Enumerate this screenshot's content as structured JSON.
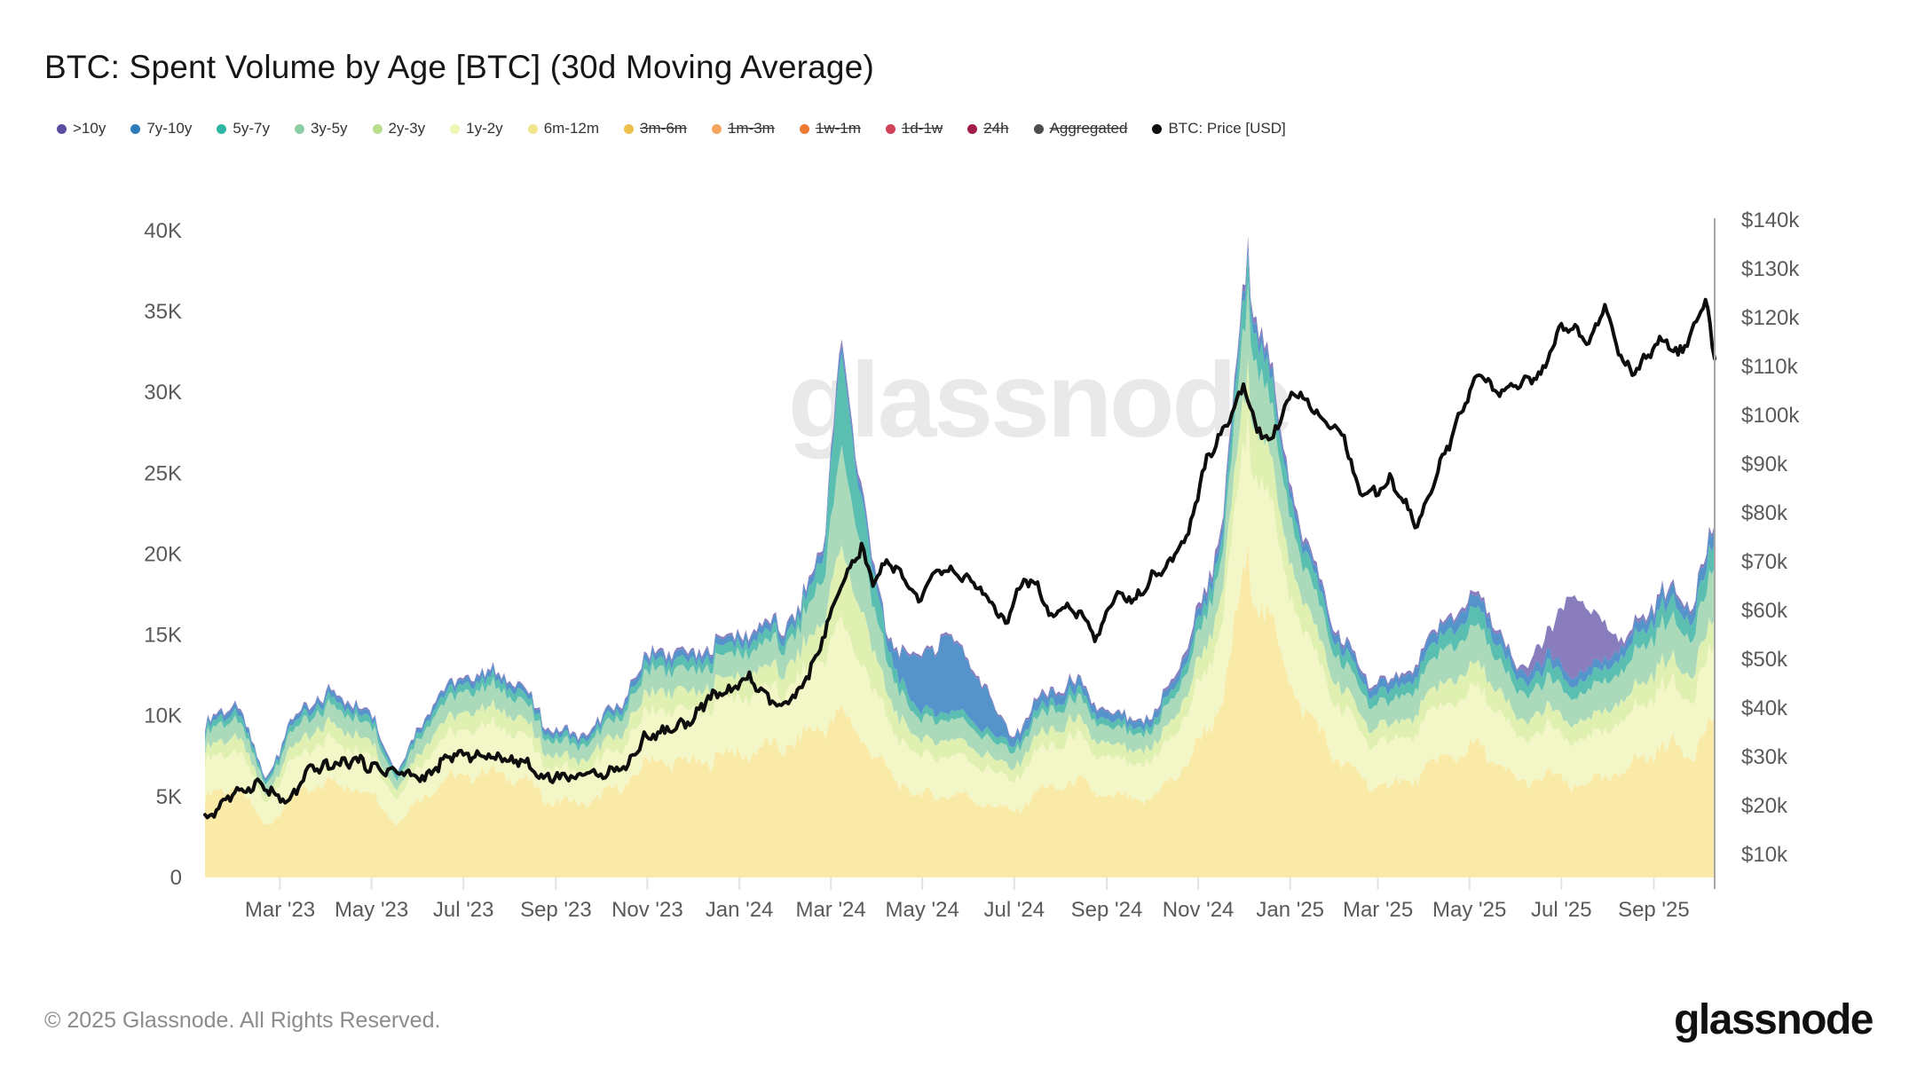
{
  "title": "BTC: Spent Volume by Age [BTC] (30d Moving Average)",
  "watermark": "glassnode",
  "footer": {
    "copyright": "© 2025 Glassnode. All Rights Reserved.",
    "logo": "glassnode"
  },
  "legend": {
    "items": [
      {
        "label": ">10y",
        "color": "#5B4EA0",
        "disabled": false
      },
      {
        "label": "7y-10y",
        "color": "#2D7DBB",
        "disabled": false
      },
      {
        "label": "5y-7y",
        "color": "#2EB7A4",
        "disabled": false
      },
      {
        "label": "3y-5y",
        "color": "#8CCFA7",
        "disabled": false
      },
      {
        "label": "2y-3y",
        "color": "#B9DC8E",
        "disabled": false
      },
      {
        "label": "1y-2y",
        "color": "#EFF7B3",
        "disabled": false
      },
      {
        "label": "6m-12m",
        "color": "#F1E58B",
        "disabled": false
      },
      {
        "label": "3m-6m",
        "color": "#ECC04A",
        "disabled": true
      },
      {
        "label": "1m-3m",
        "color": "#F5A55E",
        "disabled": true
      },
      {
        "label": "1w-1m",
        "color": "#EE7A31",
        "disabled": true
      },
      {
        "label": "1d-1w",
        "color": "#D04258",
        "disabled": true
      },
      {
        "label": "24h",
        "color": "#A21D47",
        "disabled": true
      },
      {
        "label": "Aggregated",
        "color": "#4D4D4D",
        "disabled": true
      },
      {
        "label": "BTC: Price [USD]",
        "color": "#0D0D0D",
        "disabled": false
      }
    ]
  },
  "chart_data": {
    "type": "area",
    "subtype": "stacked-area-with-price-line",
    "title": "BTC: Spent Volume by Age [BTC] (30d Moving Average)",
    "grid": false,
    "watermark_color": "#e9e9e9",
    "left_axis": {
      "labels": [
        "0",
        "5K",
        "10K",
        "15K",
        "20K",
        "25K",
        "30K",
        "35K",
        "40K"
      ],
      "values": [
        0,
        5,
        10,
        15,
        20,
        25,
        30,
        35,
        40
      ],
      "unit": "K BTC",
      "ylim": [
        0,
        44
      ]
    },
    "right_axis": {
      "labels": [
        "$10k",
        "$20k",
        "$30k",
        "$40k",
        "$50k",
        "$60k",
        "$70k",
        "$80k",
        "$90k",
        "$100k",
        "$110k",
        "$120k",
        "$130k",
        "$140k"
      ],
      "values": [
        10,
        20,
        30,
        40,
        50,
        60,
        70,
        80,
        90,
        100,
        110,
        120,
        130,
        140
      ],
      "unit": "USD",
      "ylim": [
        10,
        140
      ]
    },
    "x_axis": {
      "t_domain": [
        0,
        33
      ],
      "t_unit": "months since 2023-01-10",
      "ticks": [
        {
          "label": "Mar '23",
          "t": 1.64
        },
        {
          "label": "May '23",
          "t": 3.64
        },
        {
          "label": "Jul '23",
          "t": 5.65
        },
        {
          "label": "Sep '23",
          "t": 7.67
        },
        {
          "label": "Nov '23",
          "t": 9.67
        },
        {
          "label": "Jan '24",
          "t": 11.68
        },
        {
          "label": "Mar '24",
          "t": 13.68
        },
        {
          "label": "May '24",
          "t": 15.68
        },
        {
          "label": "Jul '24",
          "t": 17.69
        },
        {
          "label": "Sep '24",
          "t": 19.71
        },
        {
          "label": "Nov '24",
          "t": 21.71
        },
        {
          "label": "Jan '25",
          "t": 23.72
        },
        {
          "label": "Mar '25",
          "t": 25.64
        },
        {
          "label": "May '25",
          "t": 27.64
        },
        {
          "label": "Jul '25",
          "t": 29.65
        },
        {
          "label": "Sep '25",
          "t": 31.67
        }
      ]
    },
    "keypoint_t": [
      0,
      0.7,
      1.3,
      2.0,
      2.8,
      3.6,
      4.2,
      5.0,
      5.9,
      6.8,
      7.5,
      8.2,
      9.0,
      9.8,
      10.6,
      11.4,
      12.2,
      13.0,
      13.5,
      13.9,
      14.3,
      14.9,
      15.6,
      16.2,
      16.9,
      17.6,
      18.3,
      19.0,
      19.8,
      20.7,
      21.5,
      22.2,
      22.8,
      23.3,
      23.9,
      24.7,
      25.5,
      26.3,
      27.2,
      27.9,
      28.7,
      29.4,
      29.9,
      30.4,
      31.0,
      31.8,
      32.5,
      33.0
    ],
    "series": [
      {
        "name": "6m-12m",
        "fill": "#FAE9A4",
        "values": [
          5.0,
          5.6,
          3.2,
          5.2,
          5.9,
          5.3,
          3.4,
          5.7,
          6.5,
          6.3,
          4.8,
          4.5,
          5.4,
          7.3,
          7.0,
          7.6,
          7.9,
          8.4,
          9.5,
          10.0,
          9.0,
          6.5,
          5.0,
          5.2,
          4.8,
          4.0,
          5.4,
          5.9,
          4.9,
          4.8,
          7.2,
          10.5,
          19.5,
          15.5,
          11.0,
          7.5,
          5.6,
          5.9,
          7.6,
          8.0,
          5.8,
          6.3,
          5.7,
          5.9,
          6.6,
          8.1,
          7.9,
          9.6
        ]
      },
      {
        "name": "1y-2y",
        "fill": "#F3F6C4",
        "values": [
          2.1,
          2.4,
          1.4,
          2.3,
          2.6,
          2.3,
          1.5,
          2.5,
          2.9,
          2.8,
          2.1,
          2.0,
          2.4,
          3.2,
          3.1,
          3.4,
          3.5,
          3.7,
          4.3,
          5.5,
          4.8,
          3.2,
          2.4,
          2.5,
          2.3,
          1.9,
          2.5,
          2.7,
          2.25,
          2.2,
          3.1,
          4.5,
          8.5,
          7.0,
          5.0,
          3.4,
          2.6,
          2.7,
          3.4,
          3.6,
          2.7,
          2.9,
          2.7,
          2.8,
          3.0,
          3.7,
          3.6,
          4.4
        ]
      },
      {
        "name": "2y-3y",
        "fill": "#DFF0AE",
        "values": [
          0.8,
          0.9,
          0.5,
          0.9,
          1.0,
          0.9,
          0.55,
          1.0,
          1.1,
          1.05,
          0.8,
          0.75,
          0.9,
          1.2,
          1.2,
          1.3,
          1.3,
          1.4,
          2.2,
          4.5,
          3.3,
          1.6,
          1.0,
          1.0,
          0.9,
          0.75,
          0.95,
          1.05,
          0.85,
          0.85,
          1.2,
          1.8,
          3.3,
          2.7,
          1.9,
          1.3,
          1.0,
          1.1,
          1.4,
          1.5,
          1.1,
          1.2,
          1.1,
          1.15,
          1.25,
          1.5,
          1.5,
          1.8
        ]
      },
      {
        "name": "3y-5y",
        "fill": "#A7D9B8",
        "values": [
          0.9,
          1.1,
          0.6,
          1.0,
          1.1,
          1.0,
          0.65,
          1.1,
          1.3,
          1.2,
          0.9,
          0.85,
          1.0,
          1.4,
          1.3,
          1.4,
          1.5,
          1.6,
          2.6,
          6.0,
          4.2,
          1.9,
          1.3,
          1.3,
          1.2,
          0.95,
          1.15,
          1.25,
          1.05,
          1.0,
          1.5,
          2.2,
          4.3,
          3.4,
          2.4,
          1.7,
          1.4,
          1.5,
          2.1,
          2.3,
          1.6,
          1.8,
          1.7,
          1.75,
          1.9,
          2.4,
          2.3,
          3.0
        ]
      },
      {
        "name": "5y-7y",
        "fill": "#55BDAD",
        "values": [
          0.35,
          0.45,
          0.2,
          0.4,
          0.45,
          0.4,
          0.25,
          0.45,
          0.5,
          0.5,
          0.35,
          0.35,
          0.4,
          0.55,
          0.55,
          0.6,
          0.6,
          0.65,
          1.4,
          5.5,
          3.2,
          1.0,
          0.5,
          0.5,
          0.45,
          0.4,
          0.45,
          0.5,
          0.4,
          0.4,
          0.7,
          1.0,
          1.9,
          1.5,
          1.1,
          0.8,
          0.65,
          0.7,
          1.0,
          1.1,
          0.75,
          0.85,
          0.8,
          0.8,
          0.9,
          1.1,
          1.1,
          1.5
        ]
      },
      {
        "name": "7y-10y",
        "fill": "#4E91C9",
        "values": [
          0.25,
          0.35,
          0.15,
          0.3,
          0.35,
          0.3,
          0.15,
          0.3,
          0.35,
          0.35,
          0.25,
          0.25,
          0.3,
          0.4,
          0.4,
          0.4,
          0.45,
          0.45,
          0.5,
          0.6,
          0.5,
          0.45,
          3.2,
          4.6,
          3.0,
          0.5,
          0.6,
          0.55,
          0.45,
          0.4,
          0.5,
          0.6,
          0.6,
          0.55,
          0.5,
          0.5,
          0.5,
          0.55,
          0.7,
          0.75,
          0.55,
          0.6,
          0.55,
          0.55,
          0.6,
          0.7,
          0.7,
          0.9
        ]
      },
      {
        "name": ">10y",
        "fill": "#7A6BB5",
        "values": [
          0.1,
          0.1,
          0.05,
          0.1,
          0.1,
          0.1,
          0.05,
          0.1,
          0.1,
          0.1,
          0.1,
          0.1,
          0.1,
          0.15,
          0.15,
          0.15,
          0.15,
          0.15,
          0.2,
          0.4,
          0.3,
          0.15,
          0.15,
          0.15,
          0.15,
          0.1,
          0.15,
          0.15,
          0.1,
          0.1,
          0.3,
          0.4,
          0.4,
          0.35,
          0.3,
          0.2,
          0.15,
          0.15,
          0.2,
          0.25,
          0.15,
          1.5,
          5.3,
          3.0,
          0.3,
          0.2,
          0.2,
          0.25
        ]
      }
    ],
    "price": {
      "name": "BTC: Price [USD]",
      "color": "#0d0d0d",
      "keypoints": [
        [
          0,
          16.9
        ],
        [
          0.4,
          20.9
        ],
        [
          0.8,
          23.2
        ],
        [
          1.2,
          24.6
        ],
        [
          1.5,
          22.3
        ],
        [
          1.8,
          20.4
        ],
        [
          2.3,
          27.4
        ],
        [
          2.8,
          28.3
        ],
        [
          3.3,
          29.4
        ],
        [
          3.7,
          27.7
        ],
        [
          4.2,
          26.9
        ],
        [
          4.8,
          25.6
        ],
        [
          5.4,
          30.4
        ],
        [
          5.9,
          30.3
        ],
        [
          6.5,
          29.7
        ],
        [
          7.0,
          29.1
        ],
        [
          7.3,
          26.0
        ],
        [
          7.9,
          25.9
        ],
        [
          8.6,
          26.6
        ],
        [
          9.2,
          27.9
        ],
        [
          9.6,
          33.9
        ],
        [
          10.1,
          35.4
        ],
        [
          10.6,
          37.3
        ],
        [
          11.0,
          41.9
        ],
        [
          11.5,
          43.7
        ],
        [
          11.9,
          46.3
        ],
        [
          12.2,
          42.6
        ],
        [
          12.6,
          40.1
        ],
        [
          13.0,
          43.1
        ],
        [
          13.4,
          51.5
        ],
        [
          13.8,
          62.4
        ],
        [
          14.1,
          68.3
        ],
        [
          14.35,
          73.0
        ],
        [
          14.6,
          65.3
        ],
        [
          14.9,
          70.6
        ],
        [
          15.3,
          66.1
        ],
        [
          15.6,
          61.5
        ],
        [
          15.9,
          67.5
        ],
        [
          16.3,
          68.3
        ],
        [
          16.7,
          66.0
        ],
        [
          17.1,
          62.7
        ],
        [
          17.5,
          57.0
        ],
        [
          17.9,
          66.5
        ],
        [
          18.2,
          64.6
        ],
        [
          18.5,
          58.0
        ],
        [
          18.8,
          61.0
        ],
        [
          19.2,
          59.0
        ],
        [
          19.5,
          54.3
        ],
        [
          19.9,
          63.2
        ],
        [
          20.3,
          62.1
        ],
        [
          20.7,
          67.0
        ],
        [
          21.1,
          69.4
        ],
        [
          21.5,
          76.0
        ],
        [
          21.9,
          91.0
        ],
        [
          22.3,
          97.5
        ],
        [
          22.7,
          106.1
        ],
        [
          23.0,
          97.0
        ],
        [
          23.3,
          94.3
        ],
        [
          23.6,
          102.3
        ],
        [
          23.9,
          104.8
        ],
        [
          24.2,
          102.1
        ],
        [
          24.5,
          97.9
        ],
        [
          24.9,
          96.3
        ],
        [
          25.2,
          84.7
        ],
        [
          25.6,
          83.9
        ],
        [
          25.9,
          86.8
        ],
        [
          26.2,
          82.5
        ],
        [
          26.5,
          77.1
        ],
        [
          26.9,
          87.5
        ],
        [
          27.2,
          94.2
        ],
        [
          27.6,
          103.7
        ],
        [
          27.9,
          109.0
        ],
        [
          28.2,
          104.2
        ],
        [
          28.5,
          105.7
        ],
        [
          28.9,
          107.3
        ],
        [
          29.2,
          108.0
        ],
        [
          29.6,
          117.5
        ],
        [
          29.9,
          118.0
        ],
        [
          30.2,
          114.6
        ],
        [
          30.6,
          122.0
        ],
        [
          30.9,
          113.0
        ],
        [
          31.2,
          108.2
        ],
        [
          31.5,
          112.0
        ],
        [
          31.9,
          115.8
        ],
        [
          32.2,
          112.4
        ],
        [
          32.5,
          116.7
        ],
        [
          32.8,
          124.5
        ],
        [
          33.0,
          110.5
        ]
      ]
    }
  }
}
